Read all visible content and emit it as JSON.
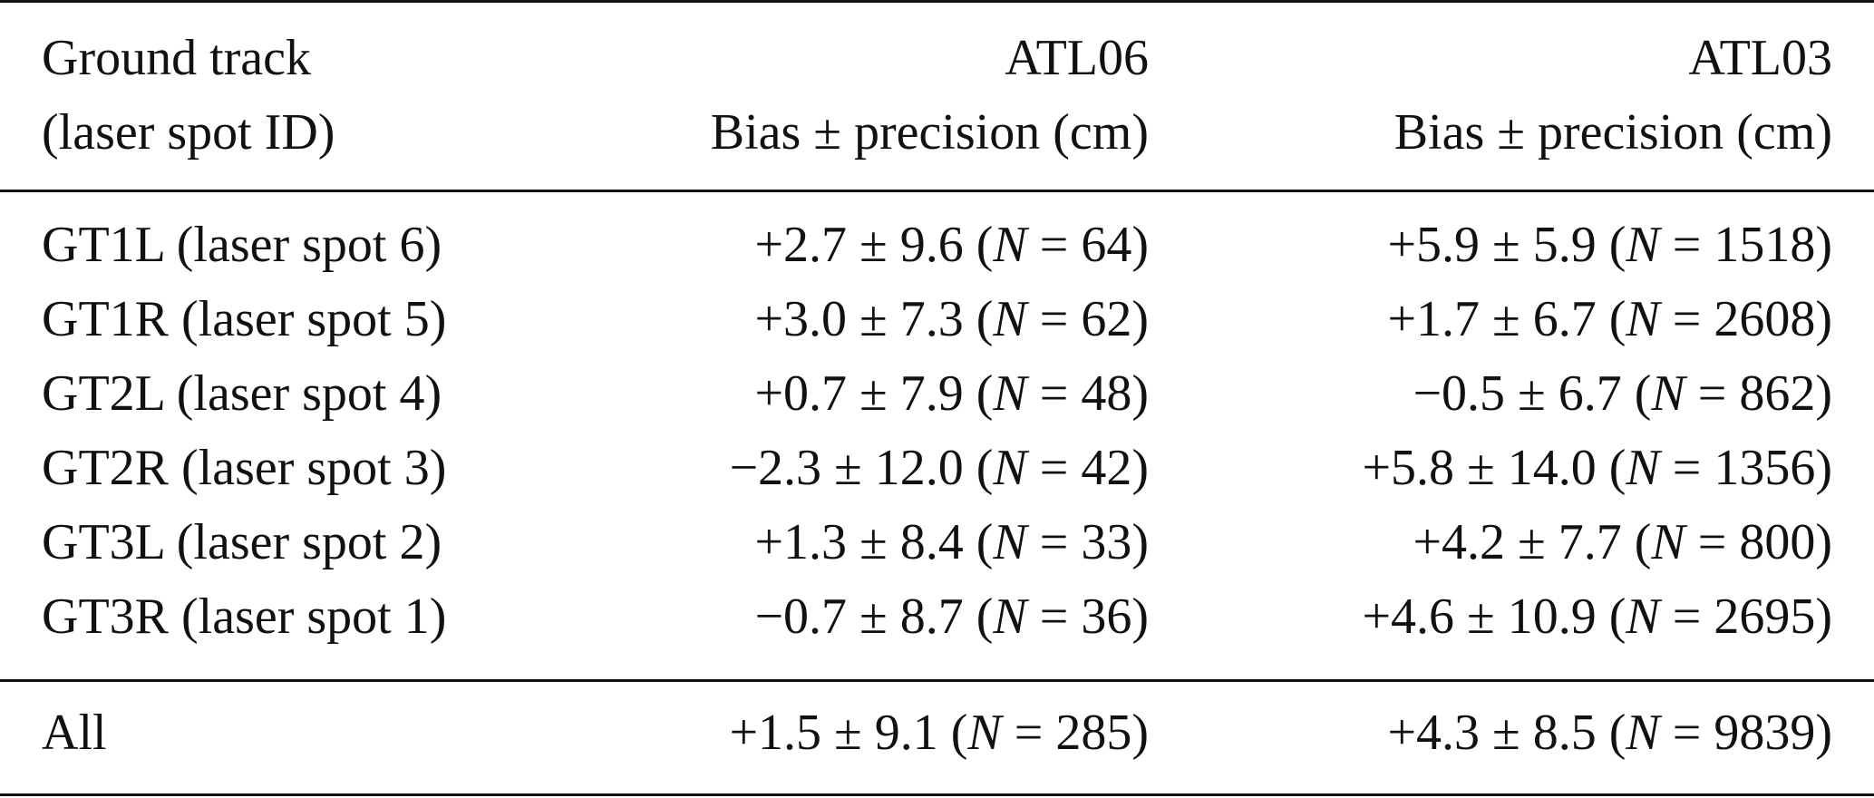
{
  "header": {
    "col1_line1": "Ground track",
    "col1_line2": "(laser spot ID)",
    "col2_line1": "ATL06",
    "col2_line2": "Bias ± precision (cm)",
    "col3_line1": "ATL03",
    "col3_line2": "Bias ± precision (cm)"
  },
  "rows": [
    {
      "track": "GT1L (laser spot 6)",
      "atl06_pre": "+2.7 ± 9.6 (",
      "atl06_n": "N",
      "atl06_post": " = 64)",
      "atl03_pre": "+5.9 ± 5.9 (",
      "atl03_n": "N",
      "atl03_post": " = 1518)"
    },
    {
      "track": "GT1R (laser spot 5)",
      "atl06_pre": "+3.0 ± 7.3 (",
      "atl06_n": "N",
      "atl06_post": " = 62)",
      "atl03_pre": "+1.7 ± 6.7 (",
      "atl03_n": "N",
      "atl03_post": " = 2608)"
    },
    {
      "track": "GT2L (laser spot 4)",
      "atl06_pre": "+0.7 ± 7.9 (",
      "atl06_n": "N",
      "atl06_post": " = 48)",
      "atl03_pre": "−0.5 ± 6.7 (",
      "atl03_n": "N",
      "atl03_post": " = 862)"
    },
    {
      "track": "GT2R (laser spot 3)",
      "atl06_pre": "−2.3 ± 12.0 (",
      "atl06_n": "N",
      "atl06_post": " = 42)",
      "atl03_pre": "+5.8 ± 14.0 (",
      "atl03_n": "N",
      "atl03_post": " = 1356)"
    },
    {
      "track": "GT3L (laser spot 2)",
      "atl06_pre": "+1.3 ± 8.4 (",
      "atl06_n": "N",
      "atl06_post": " = 33)",
      "atl03_pre": "+4.2 ± 7.7 (",
      "atl03_n": "N",
      "atl03_post": " = 800)"
    },
    {
      "track": "GT3R (laser spot 1)",
      "atl06_pre": "−0.7 ± 8.7 (",
      "atl06_n": "N",
      "atl06_post": " = 36)",
      "atl03_pre": "+4.6 ± 10.9 (",
      "atl03_n": "N",
      "atl03_post": " = 2695)"
    }
  ],
  "total": {
    "track": "All",
    "atl06_pre": "+1.5 ± 9.1 (",
    "atl06_n": "N",
    "atl06_post": " = 285)",
    "atl03_pre": "+4.3 ± 8.5 (",
    "atl03_n": "N",
    "atl03_post": " = 9839)"
  }
}
